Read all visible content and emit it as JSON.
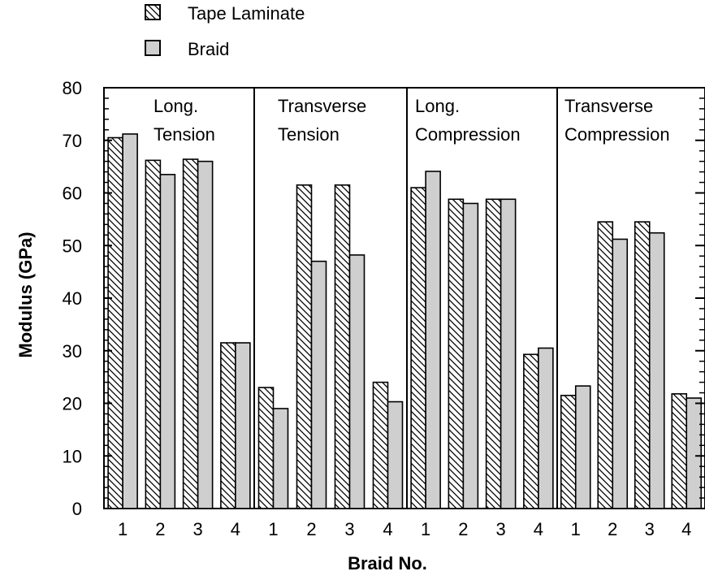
{
  "chart_data": {
    "type": "bar",
    "xlabel": "Braid No.",
    "ylabel": "Modulus (GPa)",
    "ylim": [
      0,
      80
    ],
    "yticks": [
      0,
      10,
      20,
      30,
      40,
      50,
      60,
      70,
      80
    ],
    "legend_placement": "top-left",
    "colors": {
      "tape_pattern": "diagonal-hatch",
      "braid_fill": "#cfcfcf",
      "stroke": "#000000"
    },
    "series": [
      {
        "name": "Tape Laminate"
      },
      {
        "name": "Braid"
      }
    ],
    "groups": [
      {
        "label_line1": "Long.",
        "label_line2": "Tension",
        "categories": [
          "1",
          "2",
          "3",
          "4"
        ],
        "tape": [
          70.5,
          66.2,
          66.4,
          31.5
        ],
        "braid": [
          71.2,
          63.5,
          66.0,
          31.5
        ]
      },
      {
        "label_line1": "Transverse",
        "label_line2": "Tension",
        "categories": [
          "1",
          "2",
          "3",
          "4"
        ],
        "tape": [
          23.0,
          61.5,
          61.5,
          24.0
        ],
        "braid": [
          19.0,
          47.0,
          48.2,
          20.3
        ]
      },
      {
        "label_line1": "Long.",
        "label_line2": "Compression",
        "categories": [
          "1",
          "2",
          "3",
          "4"
        ],
        "tape": [
          61.0,
          58.8,
          58.8,
          29.3
        ],
        "braid": [
          64.1,
          58.0,
          58.8,
          30.5
        ]
      },
      {
        "label_line1": "Transverse",
        "label_line2": "Compression",
        "categories": [
          "1",
          "2",
          "3",
          "4"
        ],
        "tape": [
          21.5,
          54.5,
          54.5,
          21.8
        ],
        "braid": [
          23.3,
          51.2,
          52.4,
          21.0
        ]
      }
    ]
  }
}
